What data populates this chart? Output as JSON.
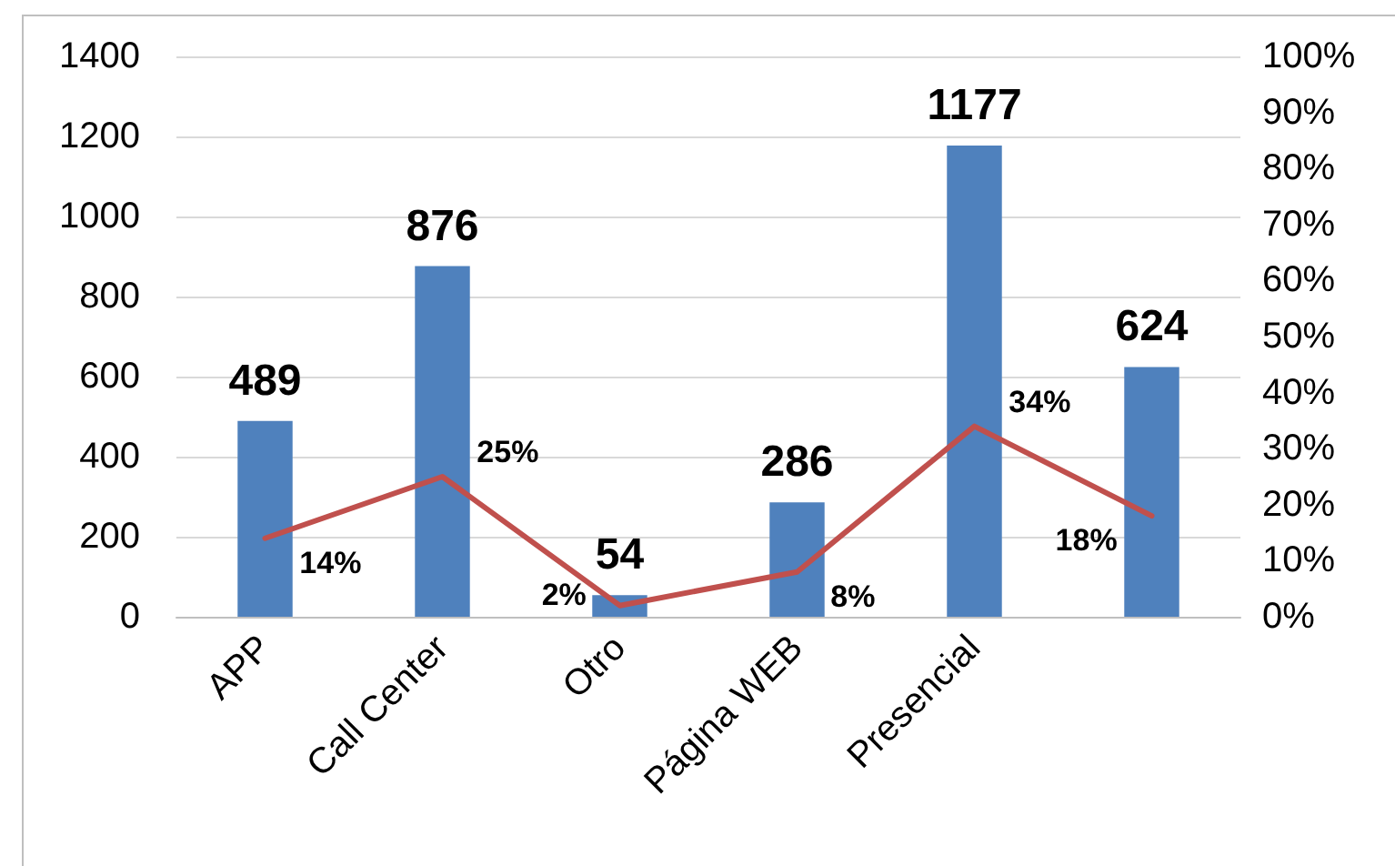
{
  "chart_data": {
    "type": "bar",
    "categories": [
      "APP",
      "Call Center",
      "Otro",
      "Página WEB",
      "Presencial",
      null
    ],
    "series": [
      {
        "type": "bar",
        "color": "#4f81bd",
        "values": [
          489,
          876,
          54,
          286,
          1177,
          624
        ]
      },
      {
        "type": "line",
        "axis": "y2",
        "color": "#c0504d",
        "values": [
          14,
          25,
          2,
          8,
          34,
          18
        ],
        "value_labels": [
          "14%",
          "25%",
          "2%",
          "8%",
          "34%",
          "18%"
        ]
      }
    ],
    "data_labels": true,
    "ylim": [
      0,
      1400
    ],
    "yticks": [
      0,
      200,
      400,
      600,
      800,
      1000,
      1200,
      1400
    ],
    "y2lim": [
      0,
      100
    ],
    "y2ticks": [
      {
        "value": 0,
        "label": "0%"
      },
      {
        "value": 10,
        "label": "10%"
      },
      {
        "value": 20,
        "label": "20%"
      },
      {
        "value": 30,
        "label": "30%"
      },
      {
        "value": 40,
        "label": "40%"
      },
      {
        "value": 50,
        "label": "50%"
      },
      {
        "value": 60,
        "label": "60%"
      },
      {
        "value": 70,
        "label": "70%"
      },
      {
        "value": 80,
        "label": "80%"
      },
      {
        "value": 90,
        "label": "90%"
      },
      {
        "value": 100,
        "label": "100%"
      }
    ],
    "grid": "y"
  }
}
